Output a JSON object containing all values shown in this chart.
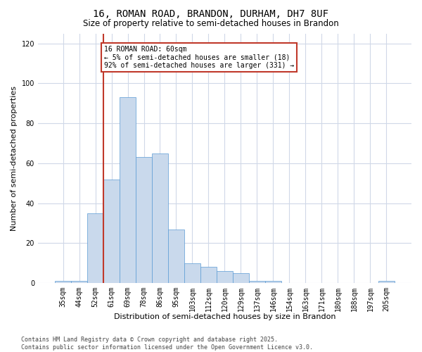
{
  "title1": "16, ROMAN ROAD, BRANDON, DURHAM, DH7 8UF",
  "title2": "Size of property relative to semi-detached houses in Brandon",
  "xlabel": "Distribution of semi-detached houses by size in Brandon",
  "ylabel": "Number of semi-detached properties",
  "categories": [
    "35sqm",
    "44sqm",
    "52sqm",
    "61sqm",
    "69sqm",
    "78sqm",
    "86sqm",
    "95sqm",
    "103sqm",
    "112sqm",
    "120sqm",
    "129sqm",
    "137sqm",
    "146sqm",
    "154sqm",
    "163sqm",
    "171sqm",
    "180sqm",
    "188sqm",
    "197sqm",
    "205sqm"
  ],
  "values": [
    1,
    1,
    35,
    52,
    93,
    63,
    65,
    27,
    10,
    8,
    6,
    5,
    1,
    1,
    0,
    0,
    0,
    0,
    0,
    0,
    1
  ],
  "bar_color": "#c9d9ec",
  "bar_edge_color": "#5b9bd5",
  "highlight_bar_index": 3,
  "highlight_edge_color": "#c0392b",
  "annotation_text": "16 ROMAN ROAD: 60sqm\n← 5% of semi-detached houses are smaller (18)\n92% of semi-detached houses are larger (331) →",
  "annotation_box_edge_color": "#c0392b",
  "annotation_box_face_color": "#ffffff",
  "vline_x": 3,
  "ylim": [
    0,
    125
  ],
  "yticks": [
    0,
    20,
    40,
    60,
    80,
    100,
    120
  ],
  "footer": "Contains HM Land Registry data © Crown copyright and database right 2025.\nContains public sector information licensed under the Open Government Licence v3.0.",
  "bg_color": "#ffffff",
  "grid_color": "#d0d8e8",
  "title1_fontsize": 10,
  "title2_fontsize": 8.5,
  "axis_label_fontsize": 8,
  "tick_fontsize": 7,
  "annotation_fontsize": 7,
  "footer_fontsize": 6
}
